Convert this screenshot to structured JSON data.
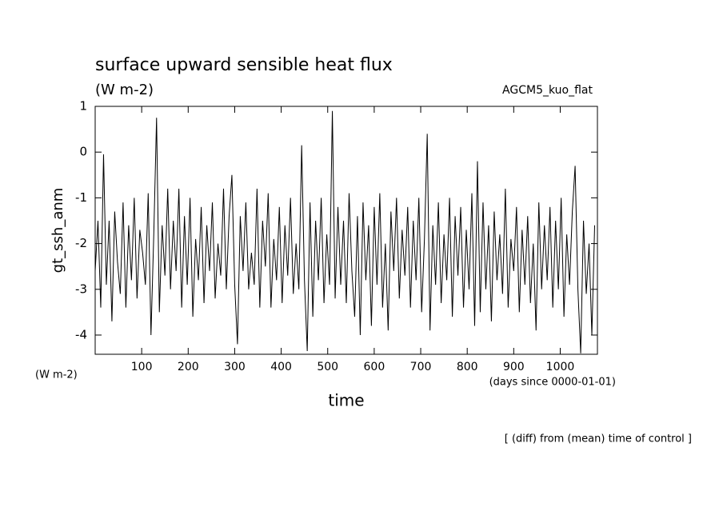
{
  "chart_data": {
    "type": "line",
    "title": "surface upward sensible heat flux",
    "subtitle": "(W m-2)",
    "annotation": "AGCM5_kuo_flat",
    "y_label": "gt_ssh_anm",
    "y_units": "(W m-2)",
    "x_units": "(days since 0000-01-01)",
    "x_label": "time",
    "footnote": "[ (diff) from (mean) time of control ]",
    "xlim": [
      0,
      1080
    ],
    "ylim": [
      -4.42,
      1
    ],
    "xticks": [
      100,
      200,
      300,
      400,
      500,
      600,
      700,
      800,
      900,
      1000
    ],
    "yticks": [
      -4,
      -3,
      -2,
      -1,
      0,
      1
    ],
    "color": "#000000",
    "x": [
      0,
      6,
      12,
      18,
      24,
      30,
      36,
      42,
      48,
      54,
      60,
      66,
      72,
      78,
      84,
      90,
      96,
      102,
      108,
      114,
      120,
      126,
      132,
      138,
      144,
      150,
      156,
      162,
      168,
      174,
      180,
      186,
      192,
      198,
      204,
      210,
      216,
      222,
      228,
      234,
      240,
      246,
      252,
      258,
      264,
      270,
      276,
      282,
      288,
      294,
      300,
      306,
      312,
      318,
      324,
      330,
      336,
      342,
      348,
      354,
      360,
      366,
      372,
      378,
      384,
      390,
      396,
      402,
      408,
      414,
      420,
      426,
      432,
      438,
      444,
      450,
      456,
      462,
      468,
      474,
      480,
      486,
      492,
      498,
      504,
      510,
      516,
      522,
      528,
      534,
      540,
      546,
      552,
      558,
      564,
      570,
      576,
      582,
      588,
      594,
      600,
      606,
      612,
      618,
      624,
      630,
      636,
      642,
      648,
      654,
      660,
      666,
      672,
      678,
      684,
      690,
      696,
      702,
      708,
      714,
      720,
      726,
      732,
      738,
      744,
      750,
      756,
      762,
      768,
      774,
      780,
      786,
      792,
      798,
      804,
      810,
      816,
      822,
      828,
      834,
      840,
      846,
      852,
      858,
      864,
      870,
      876,
      882,
      888,
      894,
      900,
      906,
      912,
      918,
      924,
      930,
      936,
      942,
      948,
      954,
      960,
      966,
      972,
      978,
      984,
      990,
      996,
      1002,
      1008,
      1014,
      1020,
      1026,
      1032,
      1038,
      1044,
      1050,
      1056,
      1062,
      1068,
      1074
    ],
    "values": [
      -2.6,
      -1.5,
      -3.4,
      -0.05,
      -2.9,
      -1.5,
      -3.7,
      -1.3,
      -2.4,
      -3.1,
      -1.1,
      -3.4,
      -1.6,
      -2.8,
      -1.0,
      -3.2,
      -1.7,
      -2.2,
      -2.9,
      -0.9,
      -4.0,
      -1.8,
      0.75,
      -3.5,
      -1.6,
      -2.7,
      -0.8,
      -3.0,
      -1.5,
      -2.6,
      -0.8,
      -3.4,
      -1.4,
      -2.9,
      -1.0,
      -3.6,
      -1.9,
      -2.8,
      -1.2,
      -3.3,
      -1.6,
      -2.6,
      -1.1,
      -3.2,
      -2.0,
      -2.7,
      -0.8,
      -3.0,
      -1.4,
      -0.5,
      -2.9,
      -4.2,
      -1.4,
      -2.6,
      -1.1,
      -3.0,
      -2.2,
      -2.9,
      -0.8,
      -3.4,
      -1.5,
      -2.5,
      -0.9,
      -3.4,
      -1.9,
      -2.8,
      -1.2,
      -3.3,
      -1.6,
      -2.7,
      -1.0,
      -3.1,
      -2.0,
      -3.0,
      0.15,
      -2.8,
      -4.35,
      -1.1,
      -3.6,
      -1.5,
      -2.8,
      -1.0,
      -3.3,
      -1.8,
      -2.9,
      0.9,
      -3.2,
      -1.2,
      -2.9,
      -1.5,
      -3.3,
      -0.9,
      -2.6,
      -3.6,
      -1.4,
      -4.0,
      -1.1,
      -2.8,
      -1.6,
      -3.8,
      -1.2,
      -2.9,
      -0.9,
      -3.4,
      -2.0,
      -3.9,
      -1.3,
      -2.6,
      -1.0,
      -3.2,
      -1.7,
      -2.7,
      -1.2,
      -3.4,
      -1.5,
      -2.8,
      -1.0,
      -3.5,
      -1.9,
      0.4,
      -3.9,
      -1.6,
      -2.9,
      -1.1,
      -3.3,
      -1.8,
      -2.8,
      -1.0,
      -3.6,
      -1.4,
      -2.7,
      -1.2,
      -3.4,
      -1.7,
      -3.0,
      -0.9,
      -3.8,
      -0.2,
      -3.5,
      -1.1,
      -3.0,
      -1.6,
      -3.7,
      -1.3,
      -2.8,
      -1.8,
      -3.1,
      -0.8,
      -3.4,
      -1.9,
      -2.6,
      -1.2,
      -3.5,
      -1.7,
      -2.9,
      -1.4,
      -3.3,
      -2.0,
      -3.9,
      -1.1,
      -3.0,
      -1.6,
      -2.8,
      -1.2,
      -3.4,
      -1.5,
      -3.0,
      -1.0,
      -3.6,
      -1.8,
      -2.9,
      -1.3,
      -0.3,
      -3.0,
      -4.4,
      -1.5,
      -3.1,
      -2.0,
      -4.0,
      -1.6
    ]
  }
}
